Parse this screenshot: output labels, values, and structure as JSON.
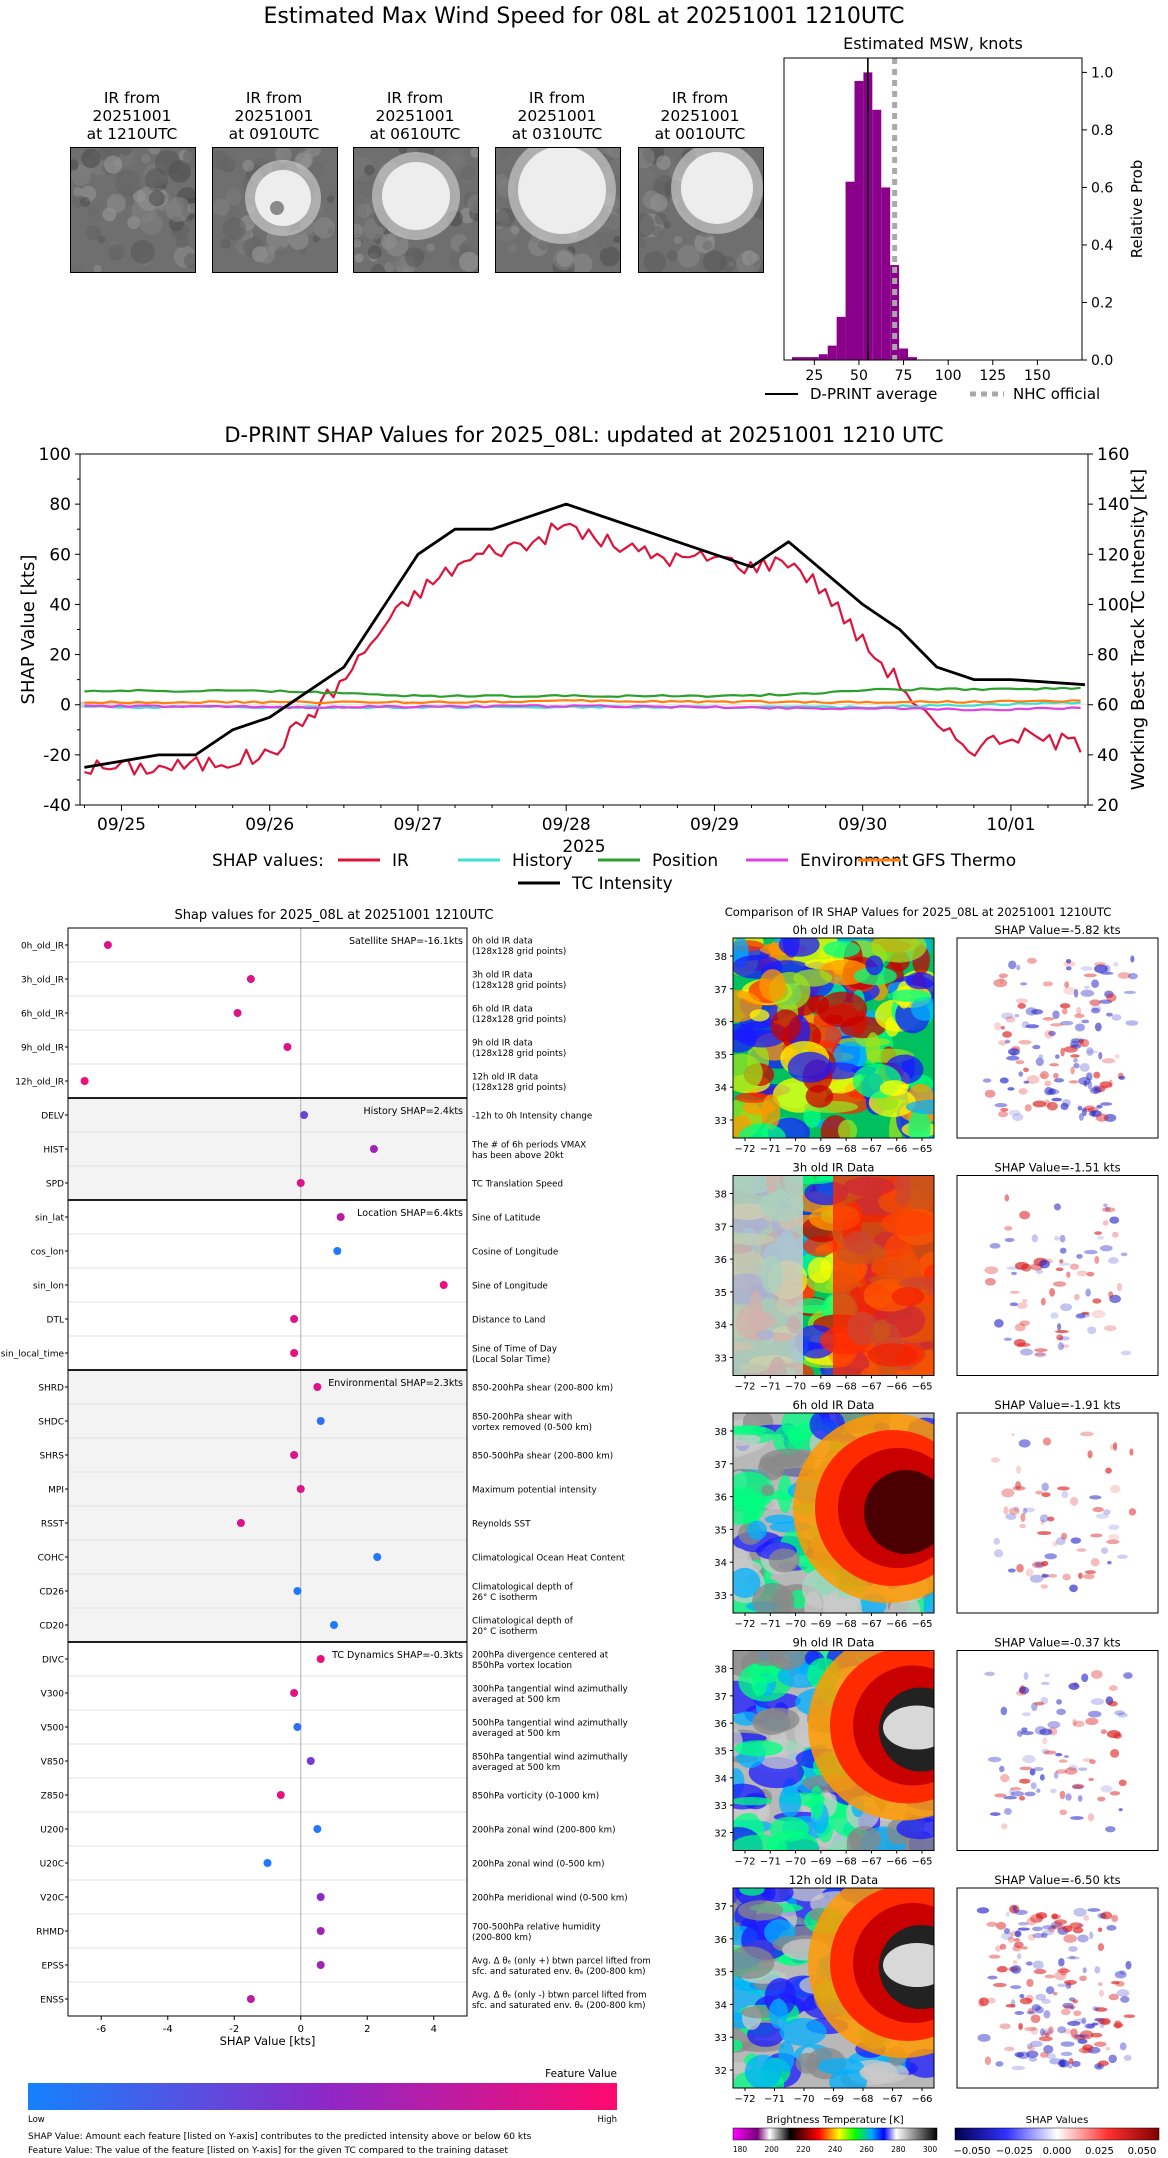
{
  "header": {
    "title": "Estimated Max Wind Speed for 08L at 20251001 1210UTC"
  },
  "ir_thumbnails": [
    {
      "label": "IR from\n20251001\nat 1210UTC",
      "style": "scattered"
    },
    {
      "label": "IR from\n20251001\nat 0910UTC",
      "style": "spiral"
    },
    {
      "label": "IR from\n20251001\nat 0610UTC",
      "style": "core-left"
    },
    {
      "label": "IR from\n20251001\nat 0310UTC",
      "style": "core-large"
    },
    {
      "label": "IR from\n20251001\nat 0010UTC",
      "style": "core-right"
    }
  ],
  "msw_panel": {
    "title": "Estimated MSW, knots",
    "ylabel": "Relative Prob",
    "x_ticks": [
      "25",
      "50",
      "75",
      "100",
      "125",
      "150"
    ],
    "y_ticks": [
      "0.0",
      "0.2",
      "0.4",
      "0.6",
      "0.8",
      "1.0"
    ],
    "legend": {
      "avg": "D-PRINT average",
      "nhc": "NHC official"
    }
  },
  "shap_timeseries": {
    "title": "D-PRINT SHAP Values for 2025_08L: updated at 20251001 1210 UTC",
    "ylabel_left": "SHAP Value [kts]",
    "ylabel_right": "Working Best Track TC Intensity [kt]",
    "xlabel": "2025",
    "y_ticks_left": [
      "-40",
      "-20",
      "0",
      "20",
      "40",
      "60",
      "80",
      "100"
    ],
    "y_ticks_right": [
      "20",
      "40",
      "60",
      "80",
      "100",
      "120",
      "140",
      "160"
    ],
    "x_ticks": [
      "09/25",
      "09/26",
      "09/27",
      "09/28",
      "09/29",
      "09/30",
      "10/01"
    ],
    "legend_prefix": "SHAP values:",
    "legend": [
      "IR",
      "History",
      "Position",
      "Environment",
      "GFS Thermo",
      "TC Intensity"
    ]
  },
  "feature_panel": {
    "title": "Shap values for 2025_08L at 20251001 1210UTC",
    "xlabel": "SHAP Value [kts]",
    "x_ticks": [
      "-6",
      "-4",
      "-2",
      "0",
      "2",
      "4"
    ],
    "groups": [
      {
        "label": "Satellite SHAP=-16.1kts",
        "shaded": false
      },
      {
        "label": "History SHAP=2.4kts",
        "shaded": true
      },
      {
        "label": "Location SHAP=6.4kts",
        "shaded": false
      },
      {
        "label": "Environmental SHAP=2.3kts",
        "shaded": true
      },
      {
        "label": "TC Dynamics SHAP=-0.3kts",
        "shaded": false
      }
    ],
    "colorbar": {
      "title": "Feature Value",
      "low": "Low",
      "high": "High"
    },
    "notes": [
      "SHAP Value: Amount each feature [listed on Y-axis] contributes to the predicted intensity above or below 60 kts",
      "Feature Value: The value of the feature [listed on Y-axis] for the given TC compared to the training dataset"
    ]
  },
  "ir_comparison": {
    "title": "Comparison of IR SHAP Values for 2025_08L at 20251001 1210UTC",
    "panels": [
      {
        "ir_title": "0h old IR Data",
        "shap_title": "SHAP Value=-5.82 kts",
        "y_ticks": [
          "33",
          "34",
          "35",
          "36",
          "37",
          "38"
        ],
        "x_ticks": [
          "−72",
          "−71",
          "−70",
          "−69",
          "−68",
          "−67",
          "−66",
          "−65"
        ]
      },
      {
        "ir_title": "3h old IR Data",
        "shap_title": "SHAP Value=-1.51 kts",
        "y_ticks": [
          "33",
          "34",
          "35",
          "36",
          "37",
          "38"
        ],
        "x_ticks": [
          "−72",
          "−71",
          "−70",
          "−69",
          "−68",
          "−67",
          "−66",
          "−65"
        ]
      },
      {
        "ir_title": "6h old IR Data",
        "shap_title": "SHAP Value=-1.91 kts",
        "y_ticks": [
          "33",
          "34",
          "35",
          "36",
          "37",
          "38"
        ],
        "x_ticks": [
          "−72",
          "−71",
          "−70",
          "−69",
          "−68",
          "−67",
          "−66",
          "−65"
        ]
      },
      {
        "ir_title": "9h old IR Data",
        "shap_title": "SHAP Value=-0.37 kts",
        "y_ticks": [
          "32",
          "33",
          "34",
          "35",
          "36",
          "37",
          "38"
        ],
        "x_ticks": [
          "−72",
          "−71",
          "−70",
          "−69",
          "−68",
          "−67",
          "−66",
          "−65"
        ]
      },
      {
        "ir_title": "12h old IR Data",
        "shap_title": "SHAP Value=-6.50 kts",
        "y_ticks": [
          "32",
          "33",
          "34",
          "35",
          "36",
          "37"
        ],
        "x_ticks": [
          "−72",
          "−71",
          "−70",
          "−69",
          "−68",
          "−67",
          "−66"
        ]
      }
    ],
    "bt_colorbar": {
      "label": "Brightness Temperature [K]",
      "ticks": [
        "180",
        "200",
        "220",
        "240",
        "260",
        "280",
        "300"
      ]
    },
    "shap_colorbar": {
      "label": "SHAP Values",
      "ticks": [
        "−0.050",
        "−0.025",
        "0.000",
        "0.025",
        "0.050"
      ]
    }
  },
  "chart_data": [
    {
      "type": "bar",
      "title": "Estimated MSW, knots",
      "xlabel": "",
      "ylabel": "Relative Prob",
      "xlim": [
        8,
        175
      ],
      "ylim": [
        0,
        1.05
      ],
      "bin_width": 5,
      "categories": [
        15,
        20,
        25,
        30,
        35,
        40,
        45,
        50,
        55,
        60,
        65,
        70,
        75,
        80
      ],
      "values": [
        0.01,
        0.01,
        0.01,
        0.02,
        0.05,
        0.15,
        0.62,
        0.97,
        1.0,
        0.87,
        0.6,
        0.33,
        0.04,
        0.01
      ],
      "d_print_average": 55,
      "nhc_official": 70,
      "colors": {
        "bars": "#8b008b",
        "avg": "#000000",
        "nhc": "#a9a9a9"
      }
    },
    {
      "type": "line",
      "title": "D-PRINT SHAP Values for 2025_08L: updated at 20251001 1210 UTC",
      "xlabel": "2025",
      "ylabel": "SHAP Value [kts]",
      "ylim": [
        -40,
        100
      ],
      "secondary_ylabel": "Working Best Track TC Intensity [kt]",
      "secondary_ylim": [
        20,
        160
      ],
      "x_range": [
        "09/24 18:00",
        "10/01 12:00"
      ],
      "series": [
        {
          "name": "IR",
          "axis": "left",
          "color": "#dc143c",
          "x": [
            "09/24 18:00",
            "09/25 06:00",
            "09/25 12:00",
            "09/25 18:00",
            "09/26 00:00",
            "09/26 06:00",
            "09/26 12:00",
            "09/26 18:00",
            "09/27 00:00",
            "09/27 06:00",
            "09/27 12:00",
            "09/27 18:00",
            "09/28 00:00",
            "09/28 06:00",
            "09/28 12:00",
            "09/28 18:00",
            "09/29 00:00",
            "09/29 06:00",
            "09/29 12:00",
            "09/29 18:00",
            "09/30 00:00",
            "09/30 06:00",
            "09/30 12:00",
            "09/30 18:00",
            "10/01 00:00",
            "10/01 06:00",
            "10/01 12:00"
          ],
          "values": [
            -25,
            -25,
            -24,
            -22,
            -20,
            -5,
            10,
            30,
            45,
            55,
            62,
            64,
            72,
            65,
            61,
            58,
            59,
            55,
            58,
            45,
            25,
            9,
            -10,
            -17,
            -12,
            -14,
            -16
          ]
        },
        {
          "name": "History",
          "axis": "left",
          "color": "#40e0d0",
          "x": [
            "09/24 18:00",
            "09/26 00:00",
            "09/28 00:00",
            "09/30 00:00",
            "10/01 12:00"
          ],
          "values": [
            -1,
            -1,
            -1,
            -1,
            1
          ]
        },
        {
          "name": "Position",
          "axis": "left",
          "color": "#2ca02c",
          "x": [
            "09/24 18:00",
            "09/26 00:00",
            "09/27 00:00",
            "09/28 00:00",
            "09/29 00:00",
            "09/29 12:00",
            "09/30 00:00",
            "10/01 12:00"
          ],
          "values": [
            5.5,
            5.5,
            3.5,
            3.5,
            3.5,
            4,
            6,
            6.5
          ]
        },
        {
          "name": "Environment",
          "axis": "left",
          "color": "#e040e0",
          "x": [
            "09/24 18:00",
            "09/26 00:00",
            "09/28 00:00",
            "09/29 00:00",
            "10/01 00:00",
            "10/01 12:00"
          ],
          "values": [
            -0.5,
            -1,
            -0.5,
            -1,
            -2,
            -1
          ]
        },
        {
          "name": "GFS Thermo",
          "axis": "left",
          "color": "#ff7f0e",
          "x": [
            "09/24 18:00",
            "09/27 00:00",
            "09/28 00:00",
            "09/30 00:00",
            "10/01 12:00"
          ],
          "values": [
            1,
            1,
            1.5,
            1,
            1.5
          ]
        },
        {
          "name": "TC Intensity",
          "axis": "right",
          "color": "#000000",
          "x": [
            "09/24 18:00",
            "09/25 06:00",
            "09/25 12:00",
            "09/25 18:00",
            "09/26 00:00",
            "09/26 06:00",
            "09/26 12:00",
            "09/27 00:00",
            "09/27 06:00",
            "09/27 12:00",
            "09/28 00:00",
            "09/28 12:00",
            "09/28 18:00",
            "09/29 00:00",
            "09/29 06:00",
            "09/29 12:00",
            "09/30 00:00",
            "09/30 06:00",
            "09/30 12:00",
            "09/30 18:00",
            "10/01 00:00",
            "10/01 12:00"
          ],
          "values": [
            35,
            40,
            40,
            50,
            55,
            65,
            75,
            120,
            130,
            130,
            140,
            130,
            125,
            120,
            115,
            125,
            100,
            90,
            75,
            70,
            70,
            68
          ]
        }
      ]
    },
    {
      "type": "scatter",
      "title": "Shap values for 2025_08L at 20251001 1210UTC",
      "xlabel": "SHAP Value [kts]",
      "ylabel": "",
      "xlim": [
        -7,
        5
      ],
      "features": [
        {
          "name": "0h_old_IR",
          "desc": "0h old IR data\n(128x128 grid points)",
          "shap": -5.8,
          "feature_value": 0.85
        },
        {
          "name": "3h_old_IR",
          "desc": "3h old IR data\n(128x128 grid points)",
          "shap": -1.5,
          "feature_value": 0.85
        },
        {
          "name": "6h_old_IR",
          "desc": "6h old IR data\n(128x128 grid points)",
          "shap": -1.9,
          "feature_value": 0.85
        },
        {
          "name": "9h_old_IR",
          "desc": "9h old IR data\n(128x128 grid points)",
          "shap": -0.4,
          "feature_value": 0.85
        },
        {
          "name": "12h_old_IR",
          "desc": "12h old IR data\n(128x128 grid points)",
          "shap": -6.5,
          "feature_value": 0.95
        },
        {
          "name": "DELV",
          "desc": "-12h to 0h Intensity change",
          "shap": 0.1,
          "feature_value": 0.35
        },
        {
          "name": "HIST",
          "desc": "The # of 6h periods VMAX\nhas been above 20kt",
          "shap": 2.2,
          "feature_value": 0.6
        },
        {
          "name": "SPD",
          "desc": "TC Translation Speed",
          "shap": 0.0,
          "feature_value": 0.85
        },
        {
          "name": "sin_lat",
          "desc": "Sine of Latitude",
          "shap": 1.2,
          "feature_value": 0.7
        },
        {
          "name": "cos_lon",
          "desc": "Cosine of Longitude",
          "shap": 1.1,
          "feature_value": 0.05
        },
        {
          "name": "sin_lon",
          "desc": "Sine of Longitude",
          "shap": 4.3,
          "feature_value": 0.9
        },
        {
          "name": "DTL",
          "desc": "Distance to Land",
          "shap": -0.2,
          "feature_value": 0.85
        },
        {
          "name": "sin_local_time",
          "desc": "Sine of Time of Day\n(Local Solar Time)",
          "shap": -0.2,
          "feature_value": 0.9
        },
        {
          "name": "SHRD",
          "desc": "850-200hPa shear (200-800 km)",
          "shap": 0.5,
          "feature_value": 0.85
        },
        {
          "name": "SHDC",
          "desc": "850-200hPa shear with\nvortex removed (0-500 km)",
          "shap": 0.6,
          "feature_value": 0.1
        },
        {
          "name": "SHRS",
          "desc": "850-500hPa shear (200-800 km)",
          "shap": -0.2,
          "feature_value": 0.85
        },
        {
          "name": "MPI",
          "desc": "Maximum potential intensity",
          "shap": 0.0,
          "feature_value": 0.85
        },
        {
          "name": "RSST",
          "desc": "Reynolds SST",
          "shap": -1.8,
          "feature_value": 0.85
        },
        {
          "name": "COHC",
          "desc": "Climatological Ocean Heat Content",
          "shap": 2.3,
          "feature_value": 0.05
        },
        {
          "name": "CD26",
          "desc": "Climatological depth of\n26° C isotherm",
          "shap": -0.1,
          "feature_value": 0.05
        },
        {
          "name": "CD20",
          "desc": "Climatological depth of\n20° C isotherm",
          "shap": 1.0,
          "feature_value": 0.05
        },
        {
          "name": "DIVC",
          "desc": "200hPa divergence centered at\n850hPa vortex location",
          "shap": 0.6,
          "feature_value": 0.9
        },
        {
          "name": "V300",
          "desc": "300hPa tangential wind azimuthally\naveraged at 500 km",
          "shap": -0.2,
          "feature_value": 0.9
        },
        {
          "name": "V500",
          "desc": "500hPa tangential wind azimuthally\naveraged at 500 km",
          "shap": -0.1,
          "feature_value": 0.1
        },
        {
          "name": "V850",
          "desc": "850hPa tangential wind azimuthally\naveraged at 500 km",
          "shap": 0.3,
          "feature_value": 0.4
        },
        {
          "name": "Z850",
          "desc": "850hPa vorticity (0-1000 km)",
          "shap": -0.6,
          "feature_value": 0.9
        },
        {
          "name": "U200",
          "desc": "200hPa zonal wind (200-800 km)",
          "shap": 0.5,
          "feature_value": 0.05
        },
        {
          "name": "U20C",
          "desc": "200hPa zonal wind (0-500 km)",
          "shap": -1.0,
          "feature_value": 0.05
        },
        {
          "name": "V20C",
          "desc": "200hPa meridional wind (0-500 km)",
          "shap": 0.6,
          "feature_value": 0.5
        },
        {
          "name": "RHMD",
          "desc": "700-500hPa relative humidity\n(200-800 km)",
          "shap": 0.6,
          "feature_value": 0.6
        },
        {
          "name": "EPSS",
          "desc": "Avg. Δ θₑ (only +) btwn parcel lifted from\nsfc. and saturated env. θₑ (200-800 km)",
          "shap": 0.6,
          "feature_value": 0.6
        },
        {
          "name": "ENSS",
          "desc": "Avg. Δ θₑ (only -) btwn parcel lifted from\nsfc. and saturated env. θₑ (200-800 km)",
          "shap": -1.5,
          "feature_value": 0.7
        }
      ]
    }
  ]
}
